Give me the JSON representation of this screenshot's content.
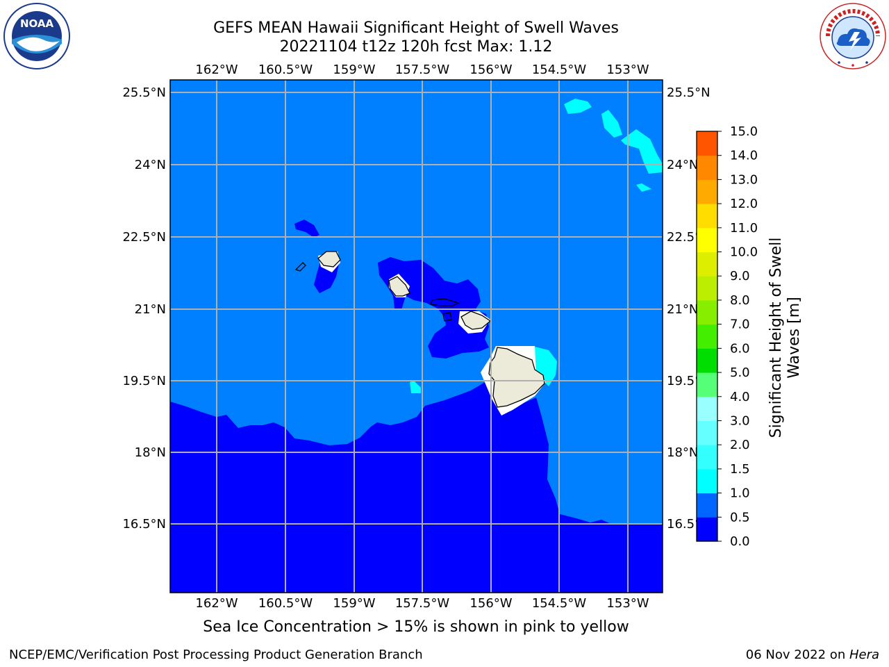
{
  "title_line1": "GEFS MEAN Hawaii Significant Height of Swell Waves",
  "title_line2": "20221104 t12z 120h fcst   Max: 1.12",
  "lon_labels": [
    "162°W",
    "160.5°W",
    "159°W",
    "157.5°W",
    "156°W",
    "154.5°W",
    "153°W"
  ],
  "lat_labels": [
    "25.5°N",
    "24°N",
    "22.5°N",
    "21°N",
    "19.5°N",
    "18°N",
    "16.5°N"
  ],
  "colorbar": {
    "label_line1": "Significant Height of Swell",
    "label_line2": "Waves [m]",
    "ticks": [
      "0.0",
      "0.5",
      "1.0",
      "1.5",
      "2.0",
      "3.0",
      "4.0",
      "5.0",
      "6.0",
      "7.0",
      "8.0",
      "9.0",
      "10.0",
      "11.0",
      "12.0",
      "13.0",
      "14.0",
      "15.0"
    ],
    "colors": [
      "#0000ff",
      "#0066ff",
      "#00ffff",
      "#33ffff",
      "#66ffff",
      "#99ffff",
      "#55ff77",
      "#00dd00",
      "#44ee00",
      "#88ee00",
      "#bbee00",
      "#ddee00",
      "#ffff00",
      "#ffdd00",
      "#ffaa00",
      "#ff8800",
      "#ff5500",
      "#ff2200",
      "#ff0000"
    ]
  },
  "footer_note": "Sea Ice Concentration > 15% is shown in pink to yellow",
  "footer_left": "NCEP/EMC/Verification Post Processing Product Generation Branch",
  "footer_right_prefix": "06 Nov 2022 on ",
  "footer_right_host": "Hera",
  "logos": {
    "noaa_text": "NOAA",
    "noaa_ring_text": "NATIONAL OCEANIC AND ATMOSPHERIC ADMINISTRATION · U.S. DEPARTMENT OF COMMERCE",
    "nws_ring_text": "NATIONAL WEATHER SERVICE"
  },
  "colors": {
    "deep_blue": "#0000ff",
    "mid_blue": "#0080ff",
    "cyan": "#00ffff",
    "land": "#ecead8",
    "grid": "#b0b0b0"
  }
}
